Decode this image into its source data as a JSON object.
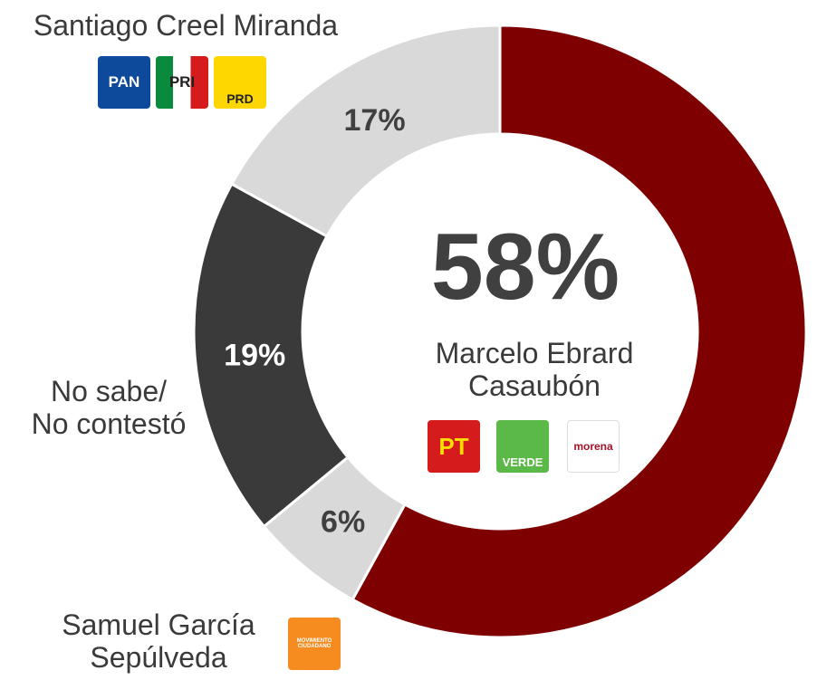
{
  "chart_data": {
    "type": "donut",
    "categories": [
      "Marcelo Ebrard\nCasaubón",
      "Samuel García\nSepúlveda",
      "No sabe/\nNo contestó",
      "Santiago Creel Miranda"
    ],
    "values": [
      58,
      6,
      19,
      17
    ],
    "value_labels": [
      "58%",
      "6%",
      "19%",
      "17%"
    ],
    "colors": [
      "#7f0000",
      "#d9d9d9",
      "#3a3a3a",
      "#d9d9d9"
    ],
    "logos": [
      [
        "PT",
        "VERDE",
        "morena"
      ],
      [
        "MOVIMIENTO CIUDADANO"
      ],
      [],
      [
        "PAN",
        "PRI",
        "PRD"
      ]
    ]
  }
}
